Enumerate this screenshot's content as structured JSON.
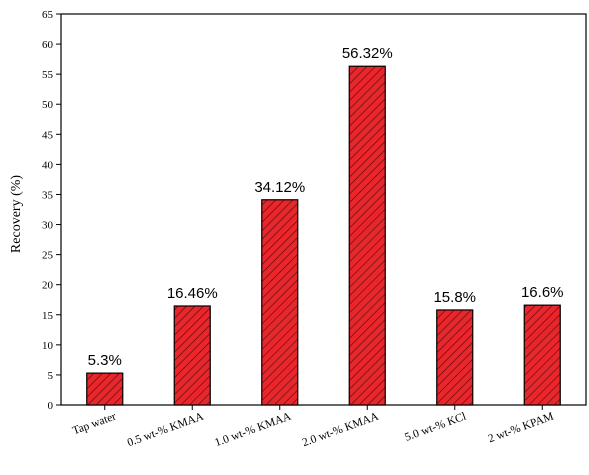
{
  "chart_data": {
    "type": "bar",
    "categories": [
      "Tap water",
      "0.5 wt-% KMAA",
      "1.0 wt-% KMAA",
      "2.0 wt-% KMAA",
      "5.0 wt-% KCl",
      "2 wt-% KPAM"
    ],
    "values": [
      5.3,
      16.46,
      34.12,
      56.32,
      15.8,
      16.6
    ],
    "data_labels": [
      "5.3%",
      "16.46%",
      "34.12%",
      "56.32%",
      "15.8%",
      "16.6%"
    ],
    "title": "",
    "xlabel": "",
    "ylabel": "Recovery (%)",
    "ylim": [
      0,
      65
    ],
    "yticks": [
      0,
      5,
      10,
      15,
      20,
      25,
      30,
      35,
      40,
      45,
      50,
      55,
      60,
      65
    ],
    "grid": false,
    "bar_color": "#e8262b",
    "bar_edge_color": "#000000",
    "hatch": "diagonal"
  }
}
